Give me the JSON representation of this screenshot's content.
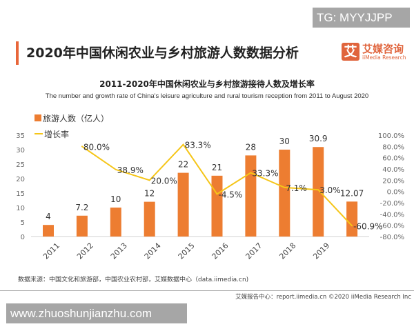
{
  "watermark_top": "TG: MYYJJPP",
  "watermark_bottom": "www.zhuoshunjianzhu.com",
  "page_title": "2020年中国休闲农业与乡村旅游人数数据分析",
  "logo": {
    "glyph": "艾",
    "name_cn": "艾媒咨询",
    "name_en": "iiMedia Research"
  },
  "source": "数据来源：中国文化和旅游部，中国农业农村部，艾媒数据中心（data.iimedia.cn)",
  "footer": "艾媒报告中心：report.iimedia.cn   ©2020  iiMedia Research Inc",
  "colors": {
    "bar": "#ed7d31",
    "line": "#f5c518",
    "accent": "#e0643c"
  },
  "chart_data": {
    "type": "bar+line",
    "title": "2011-2020年中国休闲农业与乡村旅游接待人数及增长率",
    "subtitle": "The number and growth rate of China's leisure agriculture and rural tourism reception from 2011 to August 2020",
    "categories": [
      "2011",
      "2012",
      "2013",
      "2014",
      "2015",
      "2016",
      "2017",
      "2018",
      "2019",
      ""
    ],
    "series": [
      {
        "name": "旅游人数（亿人）",
        "type": "bar",
        "axis": "left",
        "values": [
          4,
          7.2,
          10,
          12,
          22,
          21,
          28,
          30,
          30.9,
          12.07
        ],
        "labels": [
          "4",
          "7.2",
          "10",
          "12",
          "22",
          "21",
          "28",
          "30",
          "30.9",
          "12.07"
        ]
      },
      {
        "name": "增长率",
        "type": "line",
        "axis": "right",
        "values": [
          null,
          80.0,
          38.9,
          20.0,
          83.3,
          -4.5,
          33.3,
          7.1,
          3.0,
          -60.9
        ],
        "labels": [
          "",
          "80.0%",
          "38.9%",
          "20.0%",
          "83.3%",
          "-4.5%",
          "33.3%",
          "7.1%",
          "3.0%",
          "-60.9%"
        ]
      }
    ],
    "y_left": {
      "range": [
        0,
        35
      ],
      "ticks": [
        "0",
        "5",
        "10",
        "15",
        "20",
        "25",
        "30",
        "35"
      ]
    },
    "y_right": {
      "range": [
        -80,
        100
      ],
      "ticks": [
        "-80.0%",
        "-60.0%",
        "-40.0%",
        "-20.0%",
        "0.0%",
        "20.0%",
        "40.0%",
        "60.0%",
        "80.0%",
        "100.0%"
      ]
    },
    "grid": false,
    "legend": "top-left"
  }
}
